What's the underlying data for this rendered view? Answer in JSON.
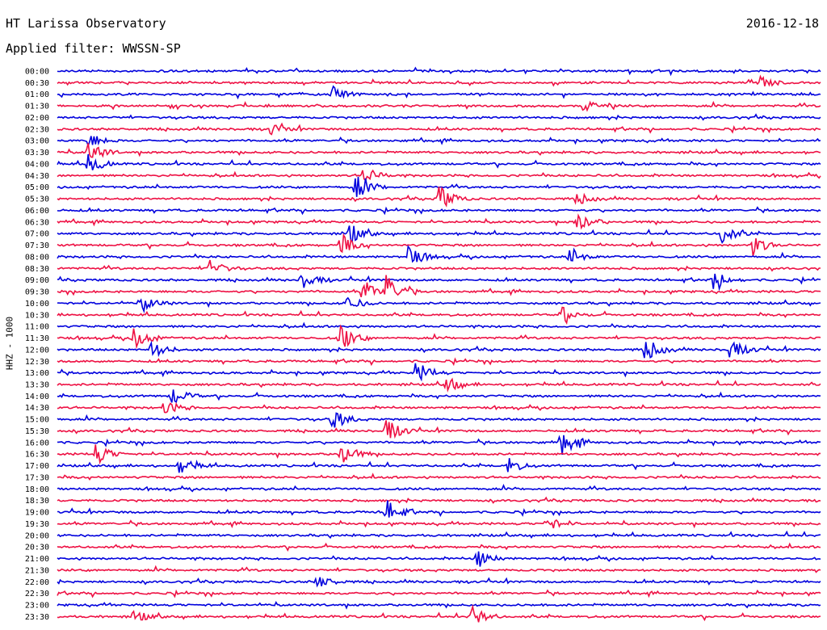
{
  "header": {
    "title": "HT Larissa Observatory",
    "date": "2016-12-18",
    "filter": "Applied filter: WWSSN-SP"
  },
  "axis": {
    "label": "HHZ - 1000"
  },
  "colors": {
    "trace_a": "#0000dd",
    "trace_b": "#ee1144",
    "text": "#000000",
    "background": "#ffffff"
  },
  "chart_data": {
    "type": "line",
    "title": "HT Larissa Observatory",
    "subtitle": "Applied filter: WWSSN-SP",
    "ylabel": "HHZ - 1000",
    "row_labels": [
      "00:00",
      "00:30",
      "01:00",
      "01:30",
      "02:00",
      "02:30",
      "03:00",
      "03:30",
      "04:00",
      "04:30",
      "05:00",
      "05:30",
      "06:00",
      "06:30",
      "07:00",
      "07:30",
      "08:00",
      "08:30",
      "09:00",
      "09:30",
      "10:00",
      "10:30",
      "11:00",
      "11:30",
      "12:00",
      "12:30",
      "13:00",
      "13:30",
      "14:00",
      "14:30",
      "15:00",
      "15:30",
      "16:00",
      "16:30",
      "17:00",
      "17:30",
      "18:00",
      "18:30",
      "19:00",
      "19:30",
      "20:00",
      "20:30",
      "21:00",
      "21:30",
      "22:00",
      "22:30",
      "23:00",
      "23:30"
    ],
    "series_colors": [
      "#0000dd",
      "#ee1144"
    ],
    "events": [
      {
        "row": "00:30",
        "pos": 0.92,
        "amp": 8
      },
      {
        "row": "01:00",
        "pos": 0.36,
        "amp": 10
      },
      {
        "row": "01:30",
        "pos": 0.69,
        "amp": 6
      },
      {
        "row": "02:30",
        "pos": 0.28,
        "amp": 7
      },
      {
        "row": "03:00",
        "pos": 0.04,
        "amp": 10
      },
      {
        "row": "03:30",
        "pos": 0.04,
        "amp": 14
      },
      {
        "row": "04:00",
        "pos": 0.04,
        "amp": 12
      },
      {
        "row": "04:30",
        "pos": 0.4,
        "amp": 12
      },
      {
        "row": "05:00",
        "pos": 0.39,
        "amp": 18
      },
      {
        "row": "05:30",
        "pos": 0.5,
        "amp": 16
      },
      {
        "row": "05:30",
        "pos": 0.68,
        "amp": 8
      },
      {
        "row": "06:30",
        "pos": 0.68,
        "amp": 14
      },
      {
        "row": "07:00",
        "pos": 0.38,
        "amp": 15
      },
      {
        "row": "07:00",
        "pos": 0.87,
        "amp": 12
      },
      {
        "row": "07:30",
        "pos": 0.37,
        "amp": 14
      },
      {
        "row": "07:30",
        "pos": 0.91,
        "amp": 14
      },
      {
        "row": "08:00",
        "pos": 0.46,
        "amp": 14
      },
      {
        "row": "08:00",
        "pos": 0.67,
        "amp": 10
      },
      {
        "row": "08:30",
        "pos": 0.2,
        "amp": 10
      },
      {
        "row": "09:00",
        "pos": 0.32,
        "amp": 12
      },
      {
        "row": "09:00",
        "pos": 0.86,
        "amp": 12
      },
      {
        "row": "09:30",
        "pos": 0.4,
        "amp": 16
      },
      {
        "row": "09:30",
        "pos": 0.43,
        "amp": 22
      },
      {
        "row": "10:00",
        "pos": 0.11,
        "amp": 12
      },
      {
        "row": "10:00",
        "pos": 0.38,
        "amp": 10
      },
      {
        "row": "10:30",
        "pos": 0.66,
        "amp": 10
      },
      {
        "row": "11:30",
        "pos": 0.1,
        "amp": 14
      },
      {
        "row": "11:30",
        "pos": 0.37,
        "amp": 18
      },
      {
        "row": "12:00",
        "pos": 0.12,
        "amp": 14
      },
      {
        "row": "12:00",
        "pos": 0.77,
        "amp": 16
      },
      {
        "row": "12:00",
        "pos": 0.88,
        "amp": 14
      },
      {
        "row": "13:00",
        "pos": 0.47,
        "amp": 14
      },
      {
        "row": "13:30",
        "pos": 0.51,
        "amp": 10
      },
      {
        "row": "14:00",
        "pos": 0.15,
        "amp": 12
      },
      {
        "row": "14:30",
        "pos": 0.14,
        "amp": 10
      },
      {
        "row": "15:00",
        "pos": 0.36,
        "amp": 14
      },
      {
        "row": "15:30",
        "pos": 0.43,
        "amp": 16
      },
      {
        "row": "16:00",
        "pos": 0.66,
        "amp": 16
      },
      {
        "row": "16:30",
        "pos": 0.05,
        "amp": 14
      },
      {
        "row": "16:30",
        "pos": 0.37,
        "amp": 16
      },
      {
        "row": "17:00",
        "pos": 0.16,
        "amp": 12
      },
      {
        "row": "17:00",
        "pos": 0.59,
        "amp": 10
      },
      {
        "row": "19:00",
        "pos": 0.43,
        "amp": 16
      },
      {
        "row": "19:30",
        "pos": 0.64,
        "amp": 10
      },
      {
        "row": "21:00",
        "pos": 0.55,
        "amp": 12
      },
      {
        "row": "22:00",
        "pos": 0.34,
        "amp": 10
      },
      {
        "row": "23:30",
        "pos": 0.1,
        "amp": 8
      },
      {
        "row": "23:30",
        "pos": 0.54,
        "amp": 16
      }
    ]
  }
}
